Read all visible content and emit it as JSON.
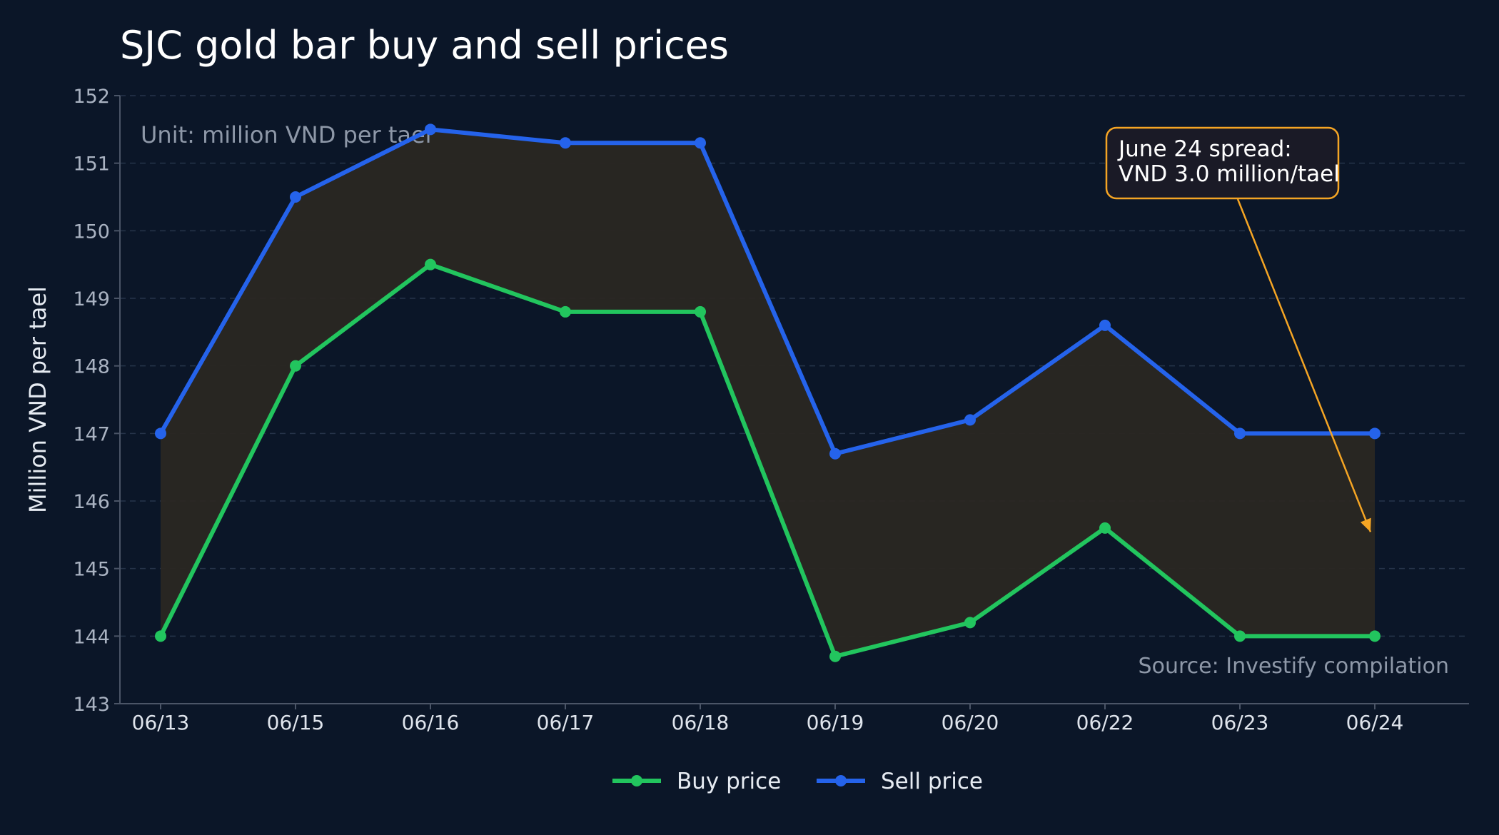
{
  "colors": {
    "background": "#0b1628",
    "grid": "#26344a",
    "axis": "#4b5567",
    "tick_text": "#aab3c2",
    "title_text": "#ffffff",
    "buy": "#22c55e",
    "sell": "#2563eb",
    "band_fill": "#2a2722",
    "annotation_border": "#f5a524",
    "annotation_bg": "#1a1a26",
    "note_text": "#8e98a8"
  },
  "chart_data": {
    "type": "line",
    "title": "SJC gold bar buy and sell prices",
    "ylabel": "Million VND per tael",
    "xlabel": "",
    "ylim": [
      143,
      152
    ],
    "yticks": [
      143,
      144,
      145,
      146,
      147,
      148,
      149,
      150,
      151,
      152
    ],
    "grid": true,
    "categories": [
      "06/13",
      "06/15",
      "06/16",
      "06/17",
      "06/18",
      "06/19",
      "06/20",
      "06/22",
      "06/23",
      "06/24"
    ],
    "series": [
      {
        "name": "Buy price",
        "color": "#22c55e",
        "values": [
          144.0,
          148.0,
          149.5,
          148.8,
          148.8,
          143.7,
          144.2,
          145.6,
          144.0,
          144.0
        ]
      },
      {
        "name": "Sell price",
        "color": "#2563eb",
        "values": [
          147.0,
          150.5,
          151.5,
          151.3,
          151.3,
          146.7,
          147.2,
          148.6,
          147.0,
          147.0
        ]
      }
    ],
    "shaded_spread": true,
    "legend_position": "bottom-center",
    "unit_note": "Unit: million VND per tael",
    "source_note": "Source: Investify compilation",
    "annotation": {
      "lines": [
        "June 24 spread:",
        "VND 3.0 million/tael"
      ],
      "target_category": "06/24",
      "target_value": 145.5
    }
  }
}
